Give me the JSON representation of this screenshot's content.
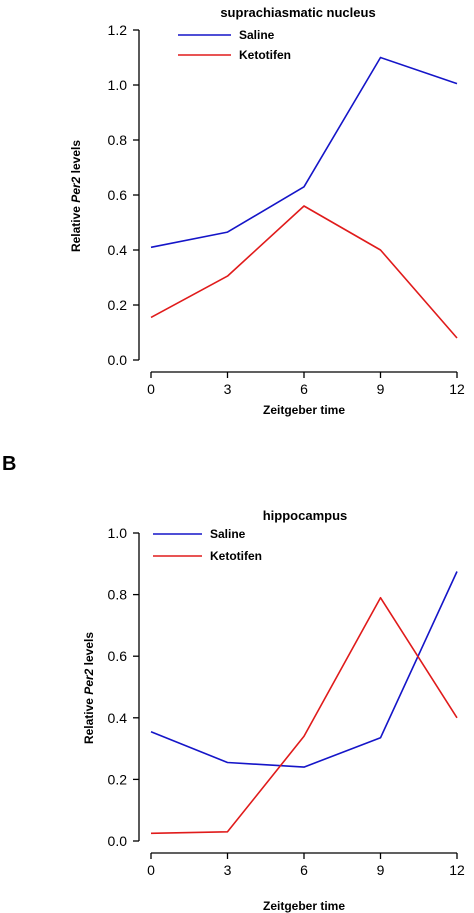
{
  "chart_data": [
    {
      "type": "line",
      "title": "suprachiasmatic nucleus",
      "xlabel": "Zeitgeber time",
      "ylabel_prefix": "Relative ",
      "ylabel_italic": "Per2",
      "ylabel_suffix": " levels",
      "x": [
        0,
        3,
        6,
        9,
        12
      ],
      "xlim": [
        0,
        12
      ],
      "ylim": [
        0,
        1.2
      ],
      "xticks": [
        "0",
        "3",
        "6",
        "9",
        "12"
      ],
      "yticks": [
        "0.0",
        "0.2",
        "0.4",
        "0.6",
        "0.8",
        "1.0",
        "1.2"
      ],
      "legend": "top-left",
      "grid": false,
      "series": [
        {
          "name": "Saline",
          "color": "#1515c8",
          "values": [
            0.41,
            0.465,
            0.63,
            1.1,
            1.005
          ]
        },
        {
          "name": "Ketotifen",
          "color": "#e01b1b",
          "values": [
            0.155,
            0.305,
            0.56,
            0.4,
            0.08
          ]
        }
      ]
    },
    {
      "type": "line",
      "panel_label": "B",
      "title": "hippocampus",
      "xlabel": "Zeitgeber time",
      "ylabel_prefix": "Relative ",
      "ylabel_italic": "Per2",
      "ylabel_suffix": " levels",
      "x": [
        0,
        3,
        6,
        9,
        12
      ],
      "xlim": [
        0,
        12
      ],
      "ylim": [
        0,
        1.0
      ],
      "xticks": [
        "0",
        "3",
        "6",
        "9",
        "12"
      ],
      "yticks": [
        "0.0",
        "0.2",
        "0.4",
        "0.6",
        "0.8",
        "1.0"
      ],
      "legend": "top-left",
      "grid": false,
      "series": [
        {
          "name": "Saline",
          "color": "#1515c8",
          "values": [
            0.355,
            0.255,
            0.24,
            0.335,
            0.875
          ]
        },
        {
          "name": "Ketotifen",
          "color": "#e01b1b",
          "values": [
            0.025,
            0.03,
            0.34,
            0.79,
            0.4
          ]
        }
      ]
    }
  ]
}
